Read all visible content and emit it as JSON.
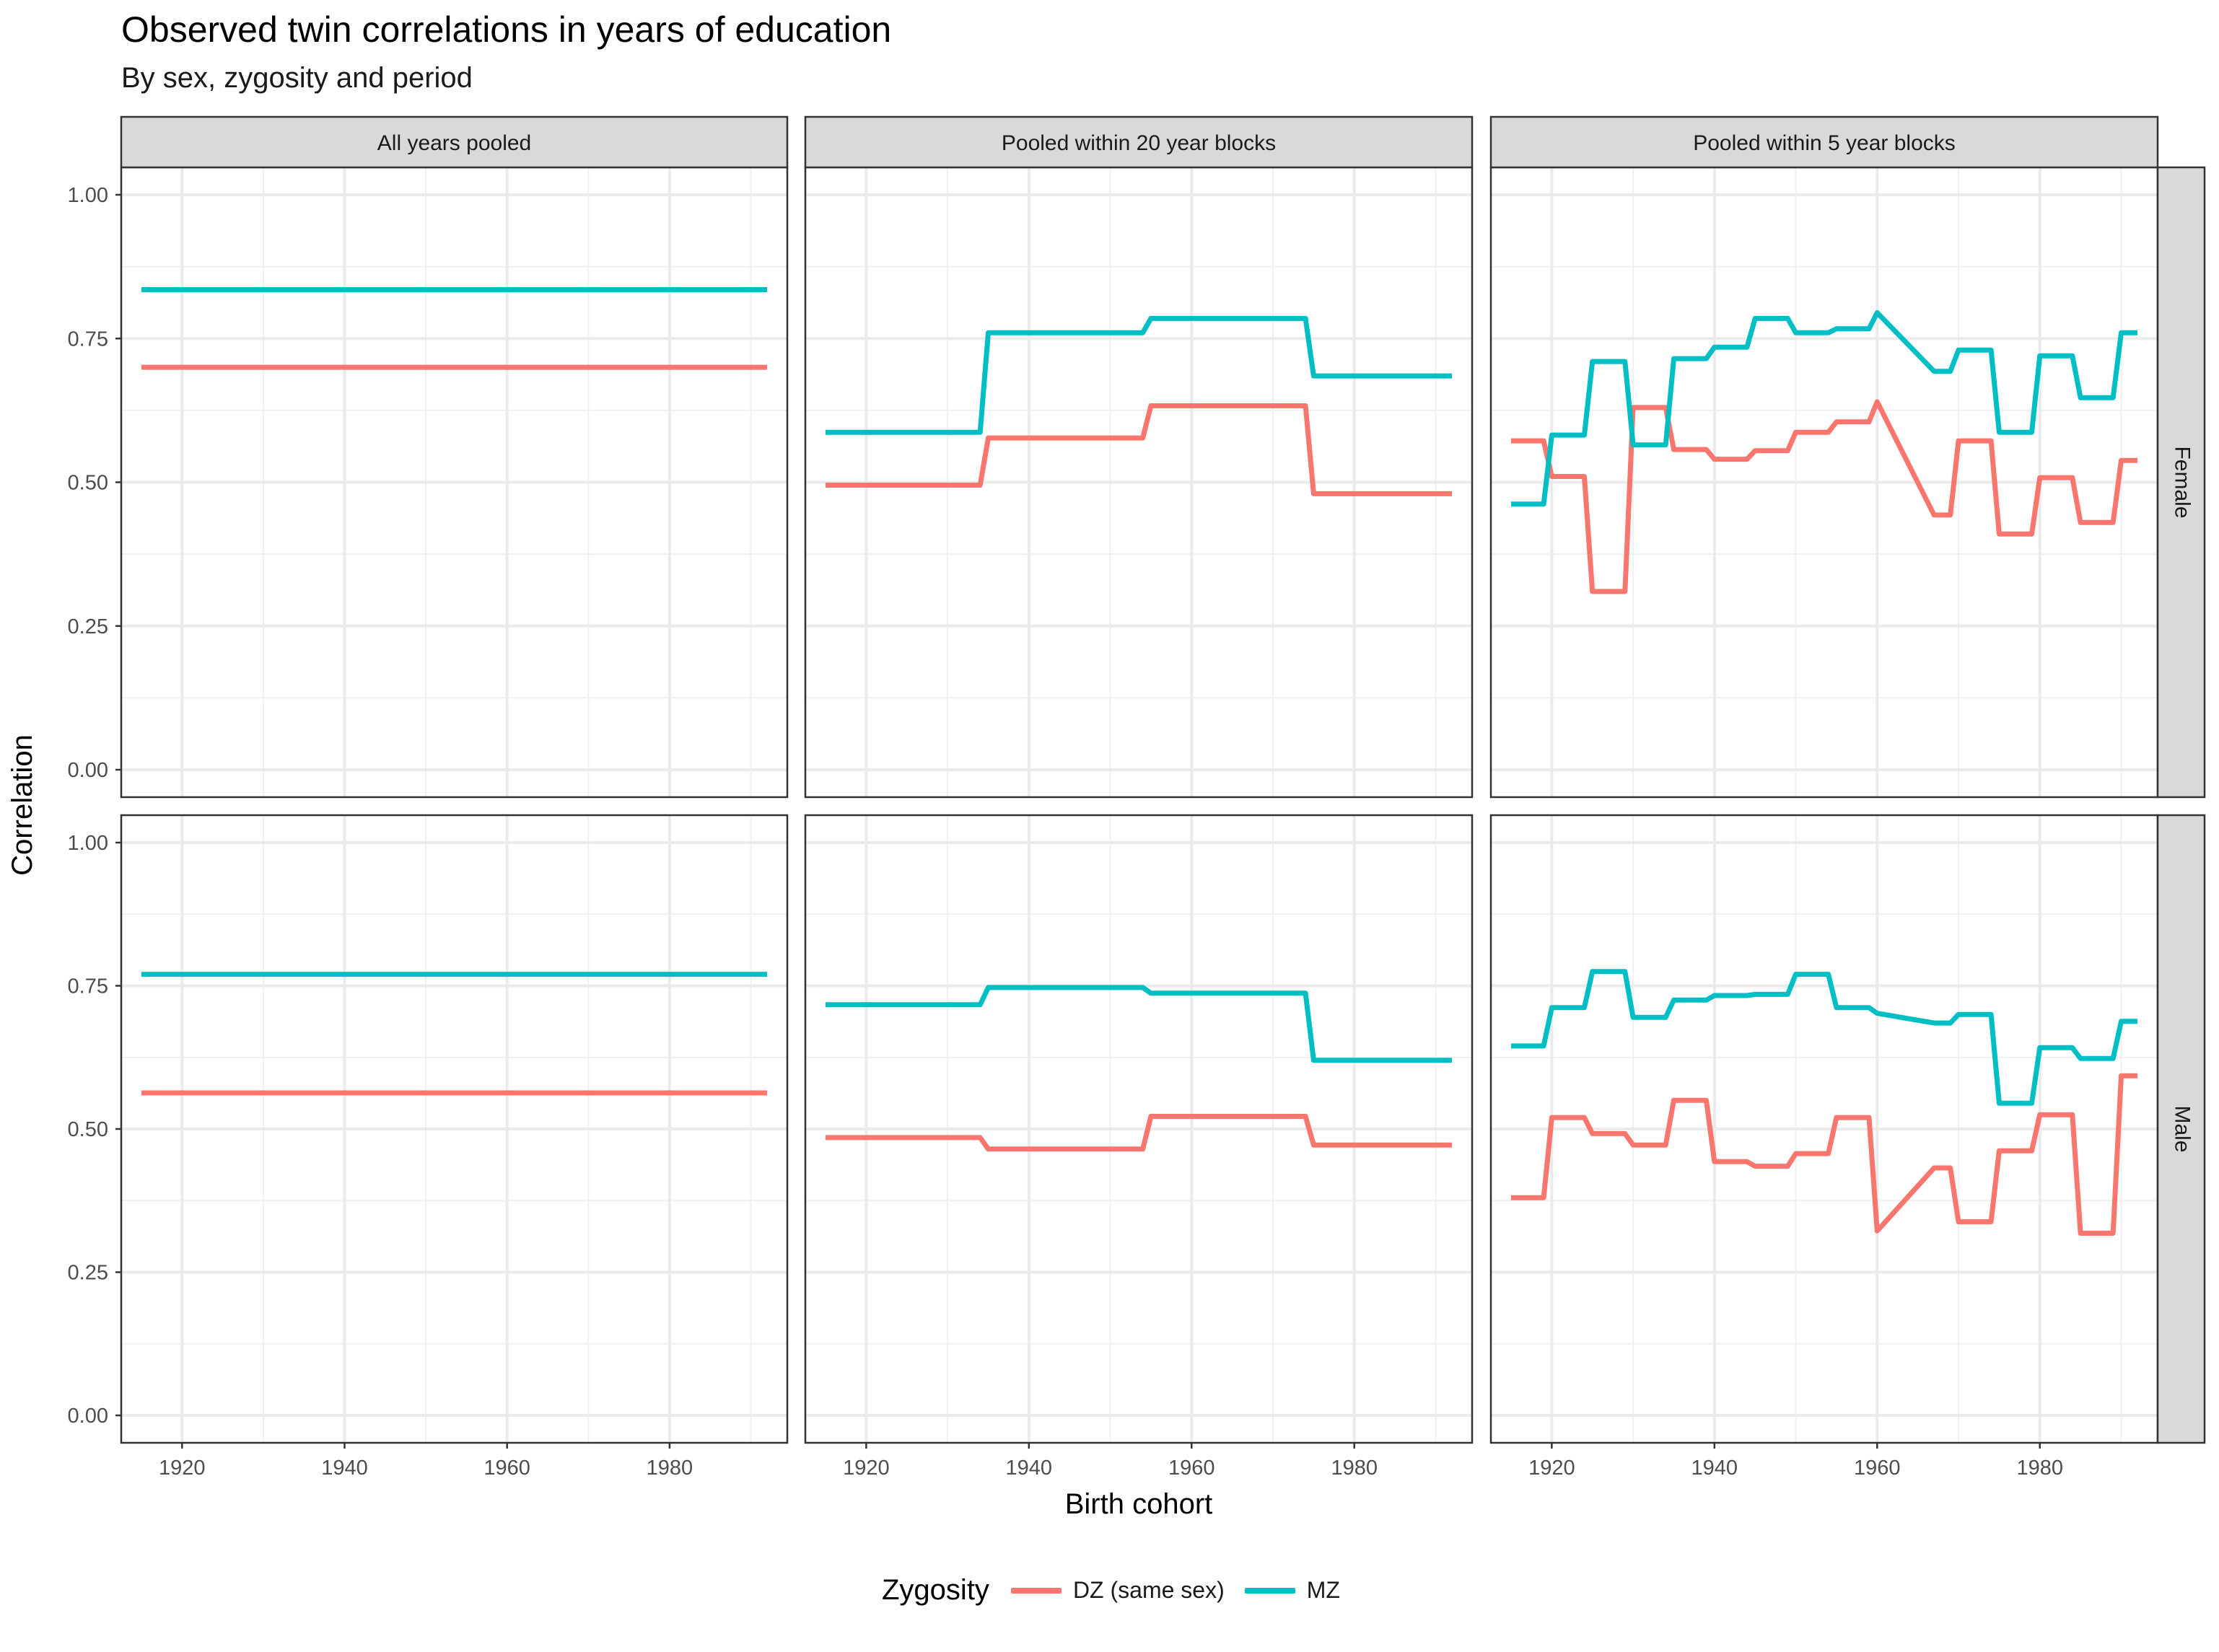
{
  "title": "Observed twin correlations in years of education",
  "subtitle": "By sex, zygosity and period",
  "legend": {
    "title": "Zygosity",
    "items": [
      {
        "label": "DZ (same sex)",
        "color": "#F8766D"
      },
      {
        "label": "MZ",
        "color": "#00BFC4"
      }
    ]
  },
  "chart_data": {
    "type": "line",
    "xlabel": "Birth cohort",
    "ylabel": "Correlation",
    "xlim": [
      1915,
      1992
    ],
    "ylim": [
      0,
      1
    ],
    "x_ticks": [
      "1920",
      "1940",
      "1960",
      "1980"
    ],
    "y_ticks": [
      "0.00",
      "0.25",
      "0.50",
      "0.75",
      "1.00"
    ],
    "grid": true,
    "legend_position": "bottom",
    "column_facets": [
      "All years pooled",
      "Pooled within 20 year blocks",
      "Pooled within 5 year blocks"
    ],
    "row_facets": [
      "Female",
      "Male"
    ],
    "panels": [
      {
        "column": "All years pooled",
        "row": "Female",
        "series": [
          {
            "name": "DZ (same sex)",
            "x": [
              1915,
              1992
            ],
            "y": [
              0.7,
              0.7
            ]
          },
          {
            "name": "MZ",
            "x": [
              1915,
              1992
            ],
            "y": [
              0.835,
              0.835
            ]
          }
        ]
      },
      {
        "column": "Pooled within 20 year blocks",
        "row": "Female",
        "series": [
          {
            "name": "DZ (same sex)",
            "x": [
              1915,
              1934,
              1935,
              1954,
              1955,
              1974,
              1975,
              1992
            ],
            "y": [
              0.495,
              0.495,
              0.577,
              0.577,
              0.633,
              0.633,
              0.48,
              0.48
            ]
          },
          {
            "name": "MZ",
            "x": [
              1915,
              1934,
              1935,
              1954,
              1955,
              1974,
              1975,
              1992
            ],
            "y": [
              0.587,
              0.587,
              0.76,
              0.76,
              0.785,
              0.785,
              0.685,
              0.685
            ]
          }
        ]
      },
      {
        "column": "Pooled within 5 year blocks",
        "row": "Female",
        "series": [
          {
            "name": "DZ (same sex)",
            "x": [
              1915,
              1919,
              1920,
              1924,
              1925,
              1929,
              1930,
              1934,
              1935,
              1939,
              1940,
              1944,
              1945,
              1949,
              1950,
              1954,
              1955,
              1959,
              1960,
              1967,
              1969,
              1970,
              1974,
              1975,
              1979,
              1980,
              1984,
              1985,
              1989,
              1990,
              1992
            ],
            "y": [
              0.572,
              0.572,
              0.51,
              0.51,
              0.31,
              0.31,
              0.63,
              0.63,
              0.557,
              0.557,
              0.54,
              0.54,
              0.555,
              0.555,
              0.587,
              0.587,
              0.605,
              0.605,
              0.64,
              0.443,
              0.443,
              0.572,
              0.572,
              0.41,
              0.41,
              0.508,
              0.508,
              0.43,
              0.43,
              0.538,
              0.538
            ]
          },
          {
            "name": "MZ",
            "x": [
              1915,
              1919,
              1920,
              1924,
              1925,
              1929,
              1930,
              1934,
              1935,
              1939,
              1940,
              1944,
              1945,
              1949,
              1950,
              1954,
              1955,
              1959,
              1960,
              1967,
              1969,
              1970,
              1974,
              1975,
              1979,
              1980,
              1984,
              1985,
              1989,
              1990,
              1992
            ],
            "y": [
              0.462,
              0.462,
              0.582,
              0.582,
              0.71,
              0.71,
              0.565,
              0.565,
              0.715,
              0.715,
              0.735,
              0.735,
              0.785,
              0.785,
              0.76,
              0.76,
              0.767,
              0.767,
              0.795,
              0.693,
              0.693,
              0.73,
              0.73,
              0.587,
              0.587,
              0.72,
              0.72,
              0.647,
              0.647,
              0.76,
              0.76
            ]
          }
        ]
      },
      {
        "column": "All years pooled",
        "row": "Male",
        "series": [
          {
            "name": "DZ (same sex)",
            "x": [
              1915,
              1992
            ],
            "y": [
              0.563,
              0.563
            ]
          },
          {
            "name": "MZ",
            "x": [
              1915,
              1992
            ],
            "y": [
              0.77,
              0.77
            ]
          }
        ]
      },
      {
        "column": "Pooled within 20 year blocks",
        "row": "Male",
        "series": [
          {
            "name": "DZ (same sex)",
            "x": [
              1915,
              1934,
              1935,
              1954,
              1955,
              1974,
              1975,
              1992
            ],
            "y": [
              0.485,
              0.485,
              0.465,
              0.465,
              0.522,
              0.522,
              0.472,
              0.472
            ]
          },
          {
            "name": "MZ",
            "x": [
              1915,
              1934,
              1935,
              1954,
              1955,
              1974,
              1975,
              1992
            ],
            "y": [
              0.717,
              0.717,
              0.747,
              0.747,
              0.737,
              0.737,
              0.62,
              0.62
            ]
          }
        ]
      },
      {
        "column": "Pooled within 5 year blocks",
        "row": "Male",
        "series": [
          {
            "name": "DZ (same sex)",
            "x": [
              1915,
              1919,
              1920,
              1924,
              1925,
              1929,
              1930,
              1934,
              1935,
              1939,
              1940,
              1944,
              1945,
              1949,
              1950,
              1954,
              1955,
              1959,
              1960,
              1967,
              1969,
              1970,
              1974,
              1975,
              1979,
              1980,
              1984,
              1985,
              1989,
              1990,
              1992
            ],
            "y": [
              0.38,
              0.38,
              0.52,
              0.52,
              0.492,
              0.492,
              0.472,
              0.472,
              0.55,
              0.55,
              0.443,
              0.443,
              0.435,
              0.435,
              0.457,
              0.457,
              0.52,
              0.52,
              0.322,
              0.432,
              0.432,
              0.338,
              0.338,
              0.462,
              0.462,
              0.525,
              0.525,
              0.318,
              0.318,
              0.593,
              0.593
            ]
          },
          {
            "name": "MZ",
            "x": [
              1915,
              1919,
              1920,
              1924,
              1925,
              1929,
              1930,
              1934,
              1935,
              1939,
              1940,
              1944,
              1945,
              1949,
              1950,
              1954,
              1955,
              1959,
              1960,
              1967,
              1969,
              1970,
              1974,
              1975,
              1979,
              1980,
              1984,
              1985,
              1989,
              1990,
              1992
            ],
            "y": [
              0.645,
              0.645,
              0.712,
              0.712,
              0.775,
              0.775,
              0.695,
              0.695,
              0.725,
              0.725,
              0.733,
              0.733,
              0.735,
              0.735,
              0.77,
              0.77,
              0.712,
              0.712,
              0.702,
              0.685,
              0.685,
              0.7,
              0.7,
              0.545,
              0.545,
              0.642,
              0.642,
              0.623,
              0.623,
              0.688,
              0.688
            ]
          }
        ]
      }
    ]
  }
}
